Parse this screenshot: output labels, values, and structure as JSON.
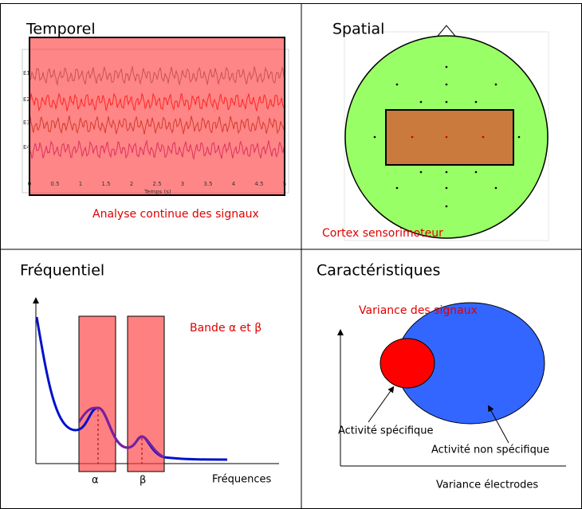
{
  "panels": {
    "temporal": {
      "title": "Temporel",
      "caption": "Analyse continue des signaux",
      "channels": [
        "E1",
        "E2",
        "E3",
        "E4"
      ],
      "ticks": [
        "0",
        "0.5",
        "1",
        "1.5",
        "2",
        "2.5",
        "3",
        "3.5",
        "4",
        "4.5",
        "5"
      ],
      "axis_label": "Temps (s)"
    },
    "spatial": {
      "title": "Spatial",
      "caption": "Cortex sensorimoteur"
    },
    "frequency": {
      "title": "Fréquentiel",
      "caption": "Bande α et β",
      "alpha": "α",
      "beta": "β",
      "axis_label": "Fréquences"
    },
    "features": {
      "title": "Caractéristiques",
      "caption": "Variance des signaux",
      "specific": "Activité spécifique",
      "non_specific": "Activité non spécifique",
      "axis_label": "Variance électrodes"
    }
  }
}
